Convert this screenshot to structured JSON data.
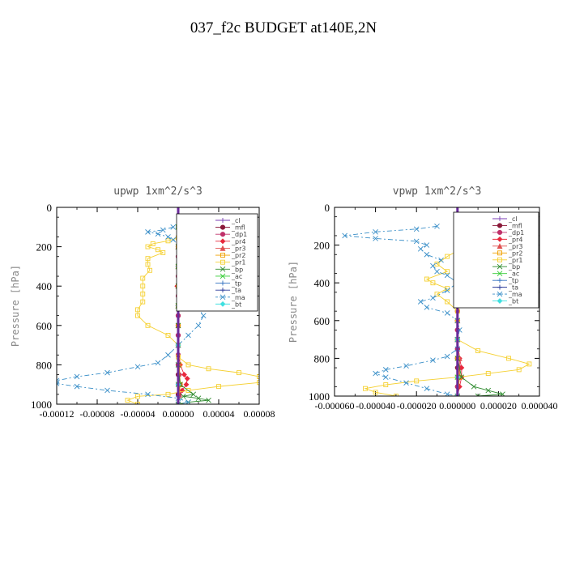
{
  "title": "037_f2c  BUDGET at140E,2N",
  "chart_data": [
    {
      "type": "line",
      "title": "upwp   1xm^2/s^3",
      "ylabel": "Pressure [hPa]",
      "xlim": [
        -0.00012,
        8e-05
      ],
      "ylim": [
        1000,
        0
      ],
      "yticks": [
        "0",
        "200",
        "400",
        "600",
        "800",
        "1000"
      ],
      "xticks": [
        "-0.00012",
        "-0.00008",
        "-0.00004",
        "0.00000",
        "0.00004",
        "0.00008"
      ],
      "grid": false,
      "legend_position": "top-right",
      "series": [
        {
          "name": "_cl",
          "color": "#7b3fb5",
          "marker": "plus",
          "dash": "",
          "y": [
            100,
            1000
          ],
          "x": [
            0,
            0
          ]
        },
        {
          "name": "_mfl",
          "color": "#8b1a3a",
          "marker": "dot",
          "dash": "",
          "y": [
            100,
            150,
            200,
            250,
            300,
            350,
            400,
            450,
            500,
            550,
            600,
            650,
            700,
            750,
            800,
            850,
            900,
            950,
            1000
          ],
          "x": [
            0,
            0,
            0,
            0,
            0,
            0,
            0,
            0,
            0,
            0,
            0,
            0,
            0,
            0,
            0,
            0,
            0,
            0,
            0
          ]
        },
        {
          "name": "_dp1",
          "color": "#c0306a",
          "marker": "dot",
          "dash": "",
          "y": [
            100,
            150,
            200,
            250,
            300,
            350,
            400,
            450,
            500,
            550,
            600,
            650,
            700,
            750,
            800,
            850,
            900,
            950,
            1000
          ],
          "x": [
            0,
            1e-06,
            0,
            0,
            0,
            0,
            0,
            0,
            0,
            0,
            0,
            0,
            0,
            0,
            0,
            1e-06,
            2e-06,
            1e-06,
            0
          ]
        },
        {
          "name": "_pr4",
          "color": "#e8283c",
          "marker": "diamond",
          "dash": "",
          "y": [
            100,
            150,
            200,
            300,
            400,
            500,
            600,
            700,
            800,
            850,
            870,
            900,
            930,
            960,
            1000
          ],
          "x": [
            2e-06,
            3e-06,
            1e-06,
            0,
            -1e-06,
            0,
            0,
            0,
            2e-06,
            6e-06,
            9e-06,
            8e-06,
            4e-06,
            1e-06,
            0
          ]
        },
        {
          "name": "_pr3",
          "color": "#e05050",
          "marker": "triangle",
          "dash": "",
          "y": [
            100,
            200,
            300,
            400,
            500,
            600,
            700,
            800,
            900,
            1000
          ],
          "x": [
            1e-06,
            0,
            0,
            0,
            0,
            0,
            0,
            1e-06,
            2e-06,
            0
          ]
        },
        {
          "name": "_pr2",
          "color": "#f0a000",
          "marker": "square",
          "dash": "",
          "y": [
            100,
            150,
            200,
            300,
            400,
            500,
            600,
            700,
            800,
            900,
            1000
          ],
          "x": [
            0,
            1e-06,
            0,
            0,
            0,
            0,
            0,
            0,
            1e-06,
            2e-06,
            0
          ]
        },
        {
          "name": "_pr1",
          "color": "#f5d030",
          "marker": "square",
          "dash": "",
          "y": [
            125,
            140,
            155,
            170,
            185,
            200,
            215,
            230,
            260,
            290,
            320,
            360,
            400,
            440,
            480,
            520,
            550,
            600,
            650,
            700,
            760,
            800,
            820,
            840,
            860,
            880,
            890,
            910,
            930,
            950,
            960,
            980,
            1000
          ],
          "x": [
            3e-05,
            1e-05,
            0,
            -1e-05,
            -2.5e-05,
            -3e-05,
            -2e-05,
            -1.5e-05,
            -3e-05,
            -3e-05,
            -2.8e-05,
            -3.5e-05,
            -3.5e-05,
            -3.5e-05,
            -3.5e-05,
            -4e-05,
            -4e-05,
            -3e-05,
            -1e-05,
            0,
            0,
            1e-05,
            3e-05,
            6e-05,
            8e-05,
            8.5e-05,
            8e-05,
            4e-05,
            1e-05,
            -1e-05,
            -4e-05,
            -5e-05,
            -4e-05
          ]
        },
        {
          "name": "_bp",
          "color": "#2e8b2e",
          "marker": "x",
          "dash": "",
          "y": [
            100,
            200,
            300,
            400,
            500,
            600,
            700,
            800,
            900,
            950,
            960,
            970,
            980,
            990,
            1000
          ],
          "x": [
            0,
            0,
            0,
            0,
            0,
            0,
            0,
            0,
            2e-06,
            1.5e-05,
            5e-06,
            2e-05,
            3e-05,
            1e-05,
            0
          ]
        },
        {
          "name": "_ac",
          "color": "#33cc33",
          "marker": "x",
          "dash": "",
          "y": [
            100,
            300,
            500,
            700,
            900,
            1000
          ],
          "x": [
            0,
            0,
            0,
            0,
            0,
            0
          ]
        },
        {
          "name": "_tp",
          "color": "#3070c0",
          "marker": "plus",
          "dash": "",
          "y": [
            100,
            300,
            500,
            700,
            900,
            1000
          ],
          "x": [
            0,
            0,
            0,
            0,
            0,
            0
          ]
        },
        {
          "name": "_ta",
          "color": "#2a3a9a",
          "marker": "plus",
          "dash": "",
          "y": [
            100,
            300,
            500,
            700,
            900,
            1000
          ],
          "x": [
            0,
            0,
            0,
            0,
            0,
            0
          ]
        },
        {
          "name": "_ma",
          "color": "#3a8fc8",
          "marker": "x",
          "dash": "6 3 2 3",
          "y": [
            100,
            115,
            125,
            135,
            150,
            165,
            180,
            200,
            230,
            260,
            300,
            350,
            400,
            450,
            500,
            550,
            600,
            650,
            700,
            750,
            790,
            810,
            840,
            860,
            880,
            895,
            910,
            930,
            950,
            970,
            990,
            1000
          ],
          "x": [
            -5e-06,
            -1.5e-05,
            -3e-05,
            -2e-05,
            -1e-05,
            -5e-06,
            2e-06,
            5e-06,
            1e-05,
            2e-05,
            2e-05,
            2e-05,
            1.5e-05,
            1.2e-05,
            1.8e-05,
            2.5e-05,
            2e-05,
            1e-05,
            0,
            -1e-05,
            -2e-05,
            -4e-05,
            -7e-05,
            -0.0001,
            -0.00012,
            -0.00012,
            -0.0001,
            -7e-05,
            -3e-05,
            0,
            1e-05,
            0
          ]
        },
        {
          "name": "_bt",
          "color": "#40e0e0",
          "marker": "diamond",
          "dash": "",
          "y": [
            100,
            300,
            500,
            700,
            900,
            1000
          ],
          "x": [
            0,
            0,
            0,
            0,
            0,
            0
          ]
        }
      ]
    },
    {
      "type": "line",
      "title": "vpwp   1xm^2/s^3",
      "ylabel": "Pressure [hPa]",
      "xlim": [
        -6e-05,
        4e-05
      ],
      "ylim": [
        1000,
        0
      ],
      "yticks": [
        "0",
        "200",
        "400",
        "600",
        "800",
        "1000"
      ],
      "xticks": [
        "-0.000060",
        "-0.000040",
        "-0.000020",
        "0.000000",
        "0.000020",
        "0.000040"
      ],
      "grid": false,
      "legend_position": "top-right",
      "series": [
        {
          "name": "_cl",
          "color": "#7b3fb5",
          "marker": "plus",
          "dash": "",
          "y": [
            100,
            1000
          ],
          "x": [
            0,
            0
          ]
        },
        {
          "name": "_mfl",
          "color": "#8b1a3a",
          "marker": "dot",
          "dash": "",
          "y": [
            100,
            150,
            200,
            250,
            300,
            350,
            400,
            450,
            500,
            550,
            600,
            650,
            700,
            750,
            800,
            850,
            900,
            950,
            1000
          ],
          "x": [
            0,
            0,
            0,
            0,
            0,
            0,
            0,
            0,
            0,
            0,
            0,
            0,
            0,
            0,
            0,
            0,
            0,
            0,
            0
          ]
        },
        {
          "name": "_dp1",
          "color": "#c0306a",
          "marker": "dot",
          "dash": "",
          "y": [
            100,
            150,
            200,
            250,
            300,
            350,
            400,
            450,
            500,
            550,
            600,
            650,
            700,
            750,
            800,
            850,
            900,
            950,
            1000
          ],
          "x": [
            0,
            2e-06,
            1e-06,
            0,
            0,
            0,
            0,
            0,
            0,
            0,
            0,
            0,
            0,
            0,
            0,
            1e-06,
            1e-06,
            0,
            0
          ]
        },
        {
          "name": "_pr4",
          "color": "#e8283c",
          "marker": "diamond",
          "dash": "",
          "y": [
            100,
            130,
            150,
            170,
            200,
            300,
            400,
            500,
            600,
            700,
            800,
            850,
            900,
            950,
            1000
          ],
          "x": [
            3e-06,
            8e-06,
            1e-05,
            6e-06,
            2e-06,
            0,
            0,
            0,
            0,
            0,
            1e-06,
            2e-06,
            2e-06,
            1e-06,
            0
          ]
        },
        {
          "name": "_pr3",
          "color": "#e05050",
          "marker": "triangle",
          "dash": "",
          "y": [
            100,
            200,
            300,
            400,
            500,
            600,
            700,
            800,
            900,
            1000
          ],
          "x": [
            1e-06,
            1e-06,
            0,
            0,
            0,
            0,
            0,
            1e-06,
            1e-06,
            0
          ]
        },
        {
          "name": "_pr2",
          "color": "#f0a000",
          "marker": "square",
          "dash": "",
          "y": [
            100,
            200,
            300,
            400,
            500,
            600,
            700,
            800,
            900,
            1000
          ],
          "x": [
            0,
            0,
            0,
            0,
            0,
            0,
            0,
            0,
            1e-06,
            0
          ]
        },
        {
          "name": "_pr1",
          "color": "#f5d030",
          "marker": "square",
          "dash": "",
          "y": [
            100,
            115,
            130,
            150,
            165,
            180,
            200,
            230,
            260,
            300,
            340,
            380,
            400,
            430,
            460,
            500,
            550,
            600,
            700,
            760,
            800,
            830,
            860,
            880,
            900,
            920,
            940,
            960,
            980,
            1000
          ],
          "x": [
            1e-05,
            2e-05,
            3e-05,
            3.8e-05,
            3e-05,
            1.5e-05,
            5e-06,
            0,
            -5e-06,
            -1e-05,
            -5e-06,
            -1.5e-05,
            -1.2e-05,
            -5e-06,
            -1e-05,
            -5e-06,
            0,
            0,
            0,
            1e-05,
            2.5e-05,
            3.5e-05,
            3e-05,
            1.5e-05,
            0,
            -2e-05,
            -3.5e-05,
            -4.5e-05,
            -4e-05,
            -3e-05
          ]
        },
        {
          "name": "_bp",
          "color": "#2e8b2e",
          "marker": "x",
          "dash": "",
          "y": [
            100,
            130,
            150,
            180,
            200,
            300,
            400,
            500,
            600,
            700,
            800,
            900,
            950,
            970,
            990,
            1000
          ],
          "x": [
            3e-06,
            6e-06,
            4e-06,
            2e-06,
            0,
            0,
            0,
            0,
            0,
            0,
            0,
            2e-06,
            8e-06,
            1.5e-05,
            2.2e-05,
            1e-05
          ]
        },
        {
          "name": "_ac",
          "color": "#33cc33",
          "marker": "x",
          "dash": "",
          "y": [
            100,
            300,
            500,
            700,
            900,
            1000
          ],
          "x": [
            0,
            0,
            0,
            0,
            0,
            0
          ]
        },
        {
          "name": "_tp",
          "color": "#3070c0",
          "marker": "plus",
          "dash": "",
          "y": [
            100,
            300,
            500,
            700,
            900,
            1000
          ],
          "x": [
            0,
            0,
            0,
            0,
            0,
            0
          ]
        },
        {
          "name": "_ta",
          "color": "#2a3a9a",
          "marker": "plus",
          "dash": "",
          "y": [
            100,
            300,
            500,
            700,
            900,
            1000
          ],
          "x": [
            0,
            0,
            0,
            0,
            0,
            0
          ]
        },
        {
          "name": "_ma",
          "color": "#3a8fc8",
          "marker": "x",
          "dash": "6 3 2 3",
          "y": [
            100,
            115,
            130,
            150,
            165,
            180,
            200,
            220,
            250,
            280,
            310,
            340,
            360,
            400,
            440,
            480,
            500,
            530,
            560,
            600,
            650,
            700,
            750,
            790,
            810,
            840,
            860,
            880,
            900,
            930,
            960,
            990,
            1000
          ],
          "x": [
            -1e-05,
            -2e-05,
            -4e-05,
            -5.5e-05,
            -4e-05,
            -2e-05,
            -1.5e-05,
            -1.8e-05,
            -1.5e-05,
            -8e-06,
            -1.2e-05,
            -1e-05,
            -5e-06,
            0,
            -5e-06,
            -1.2e-05,
            -1.8e-05,
            -1.5e-05,
            -5e-06,
            0,
            1e-06,
            0,
            0,
            -5e-06,
            -1.2e-05,
            -2.5e-05,
            -3.5e-05,
            -4e-05,
            -3.5e-05,
            -2.5e-05,
            -1.5e-05,
            -5e-06,
            0
          ]
        },
        {
          "name": "_bt",
          "color": "#40e0e0",
          "marker": "diamond",
          "dash": "",
          "y": [
            100,
            300,
            500,
            700,
            900,
            1000
          ],
          "x": [
            0,
            0,
            0,
            0,
            0,
            0
          ]
        }
      ]
    }
  ]
}
